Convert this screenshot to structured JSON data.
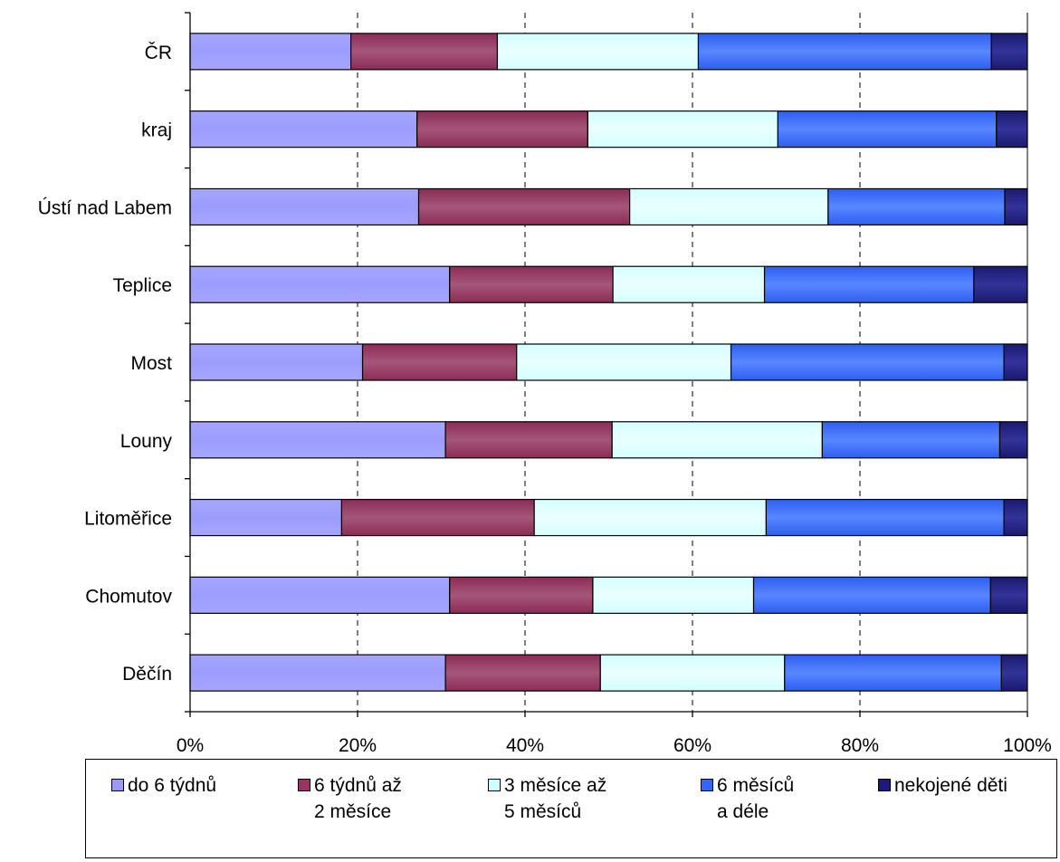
{
  "chart_data": {
    "type": "bar",
    "orientation": "horizontal",
    "stacked": "percent",
    "categories": [
      "ČR",
      "kraj",
      "Ústí nad Labem",
      "Teplice",
      "Most",
      "Louny",
      "Litoměřice",
      "Chomutov",
      "Děčín"
    ],
    "series": [
      {
        "name": "do 6 týdnů",
        "color": "#9999ff",
        "values": [
          19.2,
          27.1,
          27.3,
          31.0,
          20.6,
          30.5,
          18.1,
          31.0,
          30.5
        ]
      },
      {
        "name": "6 týdnů až\n2 měsíce",
        "color": "#993366",
        "values": [
          17.5,
          20.4,
          25.2,
          19.5,
          18.4,
          19.9,
          23.0,
          17.1,
          18.5
        ]
      },
      {
        "name": "3 měsíce až\n5 měsíců",
        "color": "#ccffff",
        "values": [
          24.0,
          22.7,
          23.7,
          18.1,
          25.6,
          25.1,
          27.7,
          19.2,
          22.0
        ]
      },
      {
        "name": "6 měsíců\na déle",
        "color": "#3366ff",
        "values": [
          35.0,
          26.1,
          21.1,
          25.0,
          32.6,
          21.2,
          28.4,
          28.3,
          25.9
        ]
      },
      {
        "name": "nekojené děti",
        "color": "#1a1a80",
        "values": [
          4.3,
          3.7,
          2.7,
          6.4,
          2.8,
          3.3,
          2.8,
          4.4,
          3.1
        ]
      }
    ],
    "xlim": [
      0,
      100
    ],
    "xticks": [
      "0%",
      "20%",
      "40%",
      "60%",
      "80%",
      "100%"
    ],
    "grid": "vertical dashed",
    "legend": "bottom"
  }
}
